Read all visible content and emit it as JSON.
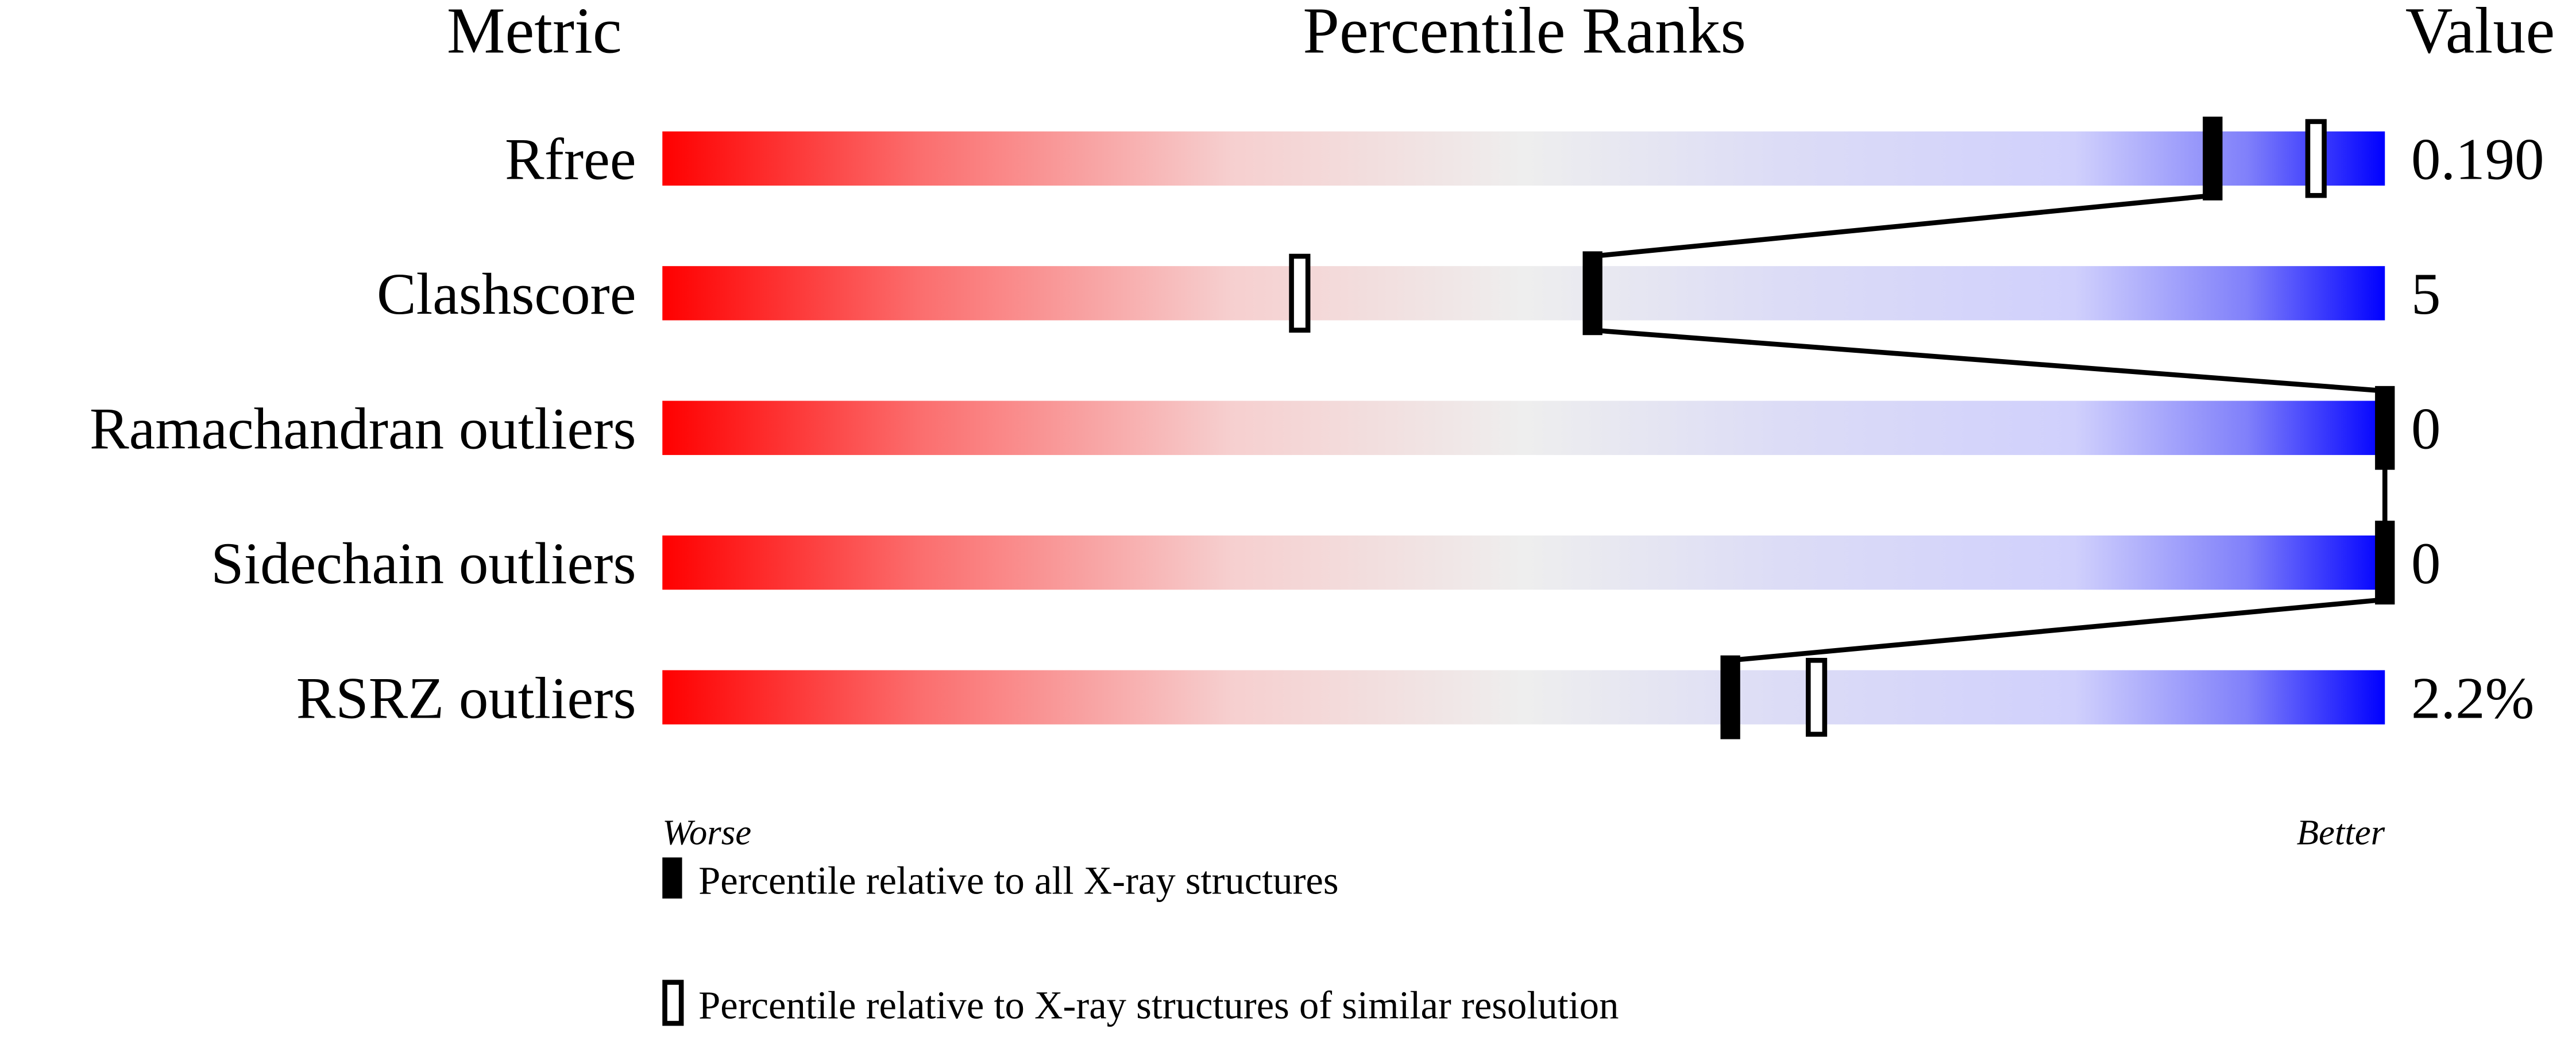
{
  "chart_data": {
    "type": "percentile-slider",
    "headers": {
      "metric": "Metric",
      "ranks": "Percentile Ranks",
      "value": "Value"
    },
    "xlim": [
      0,
      100
    ],
    "axis_labels": {
      "worse": "Worse",
      "better": "Better"
    },
    "gradient_colors": {
      "worse": "#ff0000",
      "middle": "#eeeeee",
      "better": "#0000ff"
    },
    "rows": [
      {
        "metric": "Rfree",
        "value": "0.190",
        "percentile_all": 90,
        "percentile_similar": 96
      },
      {
        "metric": "Clashscore",
        "value": "5",
        "percentile_all": 54,
        "percentile_similar": 37
      },
      {
        "metric": "Ramachandran outliers",
        "value": "0",
        "percentile_all": 100,
        "percentile_similar": 100
      },
      {
        "metric": "Sidechain outliers",
        "value": "0",
        "percentile_all": 100,
        "percentile_similar": 100
      },
      {
        "metric": "RSRZ outliers",
        "value": "2.2%",
        "percentile_all": 62,
        "percentile_similar": 67
      }
    ],
    "legend": [
      {
        "marker": "filled",
        "label": "Percentile relative to all X-ray structures"
      },
      {
        "marker": "open",
        "label": "Percentile relative to X-ray structures of similar resolution"
      }
    ]
  }
}
